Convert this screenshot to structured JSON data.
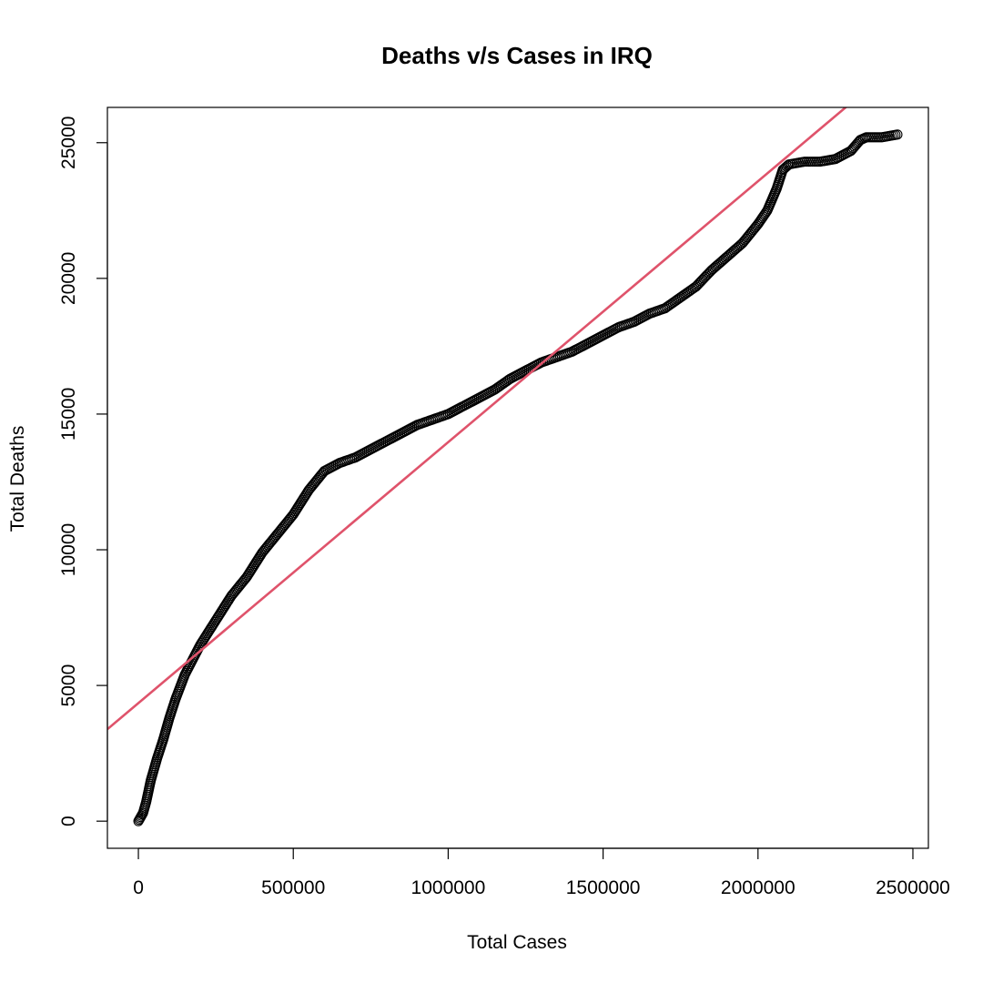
{
  "chart_data": {
    "type": "scatter",
    "title": "Deaths v/s Cases in IRQ",
    "xlabel": "Total Cases",
    "ylabel": "Total Deaths",
    "xlim": [
      -100000,
      2550000
    ],
    "ylim": [
      -1000,
      26300
    ],
    "xticks": [
      0,
      500000,
      1000000,
      1500000,
      2000000,
      2500000
    ],
    "xtick_labels": [
      "0",
      "500000",
      "1000000",
      "1500000",
      "2000000",
      "2500000"
    ],
    "yticks": [
      0,
      5000,
      10000,
      15000,
      20000,
      25000
    ],
    "ytick_labels": [
      "0",
      "5000",
      "10000",
      "15000",
      "20000",
      "25000"
    ],
    "grid": false,
    "marker": "open-circle",
    "point_color": "#000000",
    "trend_color": "#DF536B",
    "series": [
      {
        "points": [
          [
            0,
            0
          ],
          [
            5000,
            100
          ],
          [
            15000,
            300
          ],
          [
            25000,
            700
          ],
          [
            40000,
            1500
          ],
          [
            60000,
            2300
          ],
          [
            80000,
            3000
          ],
          [
            100000,
            3800
          ],
          [
            120000,
            4500
          ],
          [
            150000,
            5400
          ],
          [
            200000,
            6500
          ],
          [
            250000,
            7400
          ],
          [
            300000,
            8300
          ],
          [
            350000,
            9000
          ],
          [
            400000,
            9900
          ],
          [
            450000,
            10600
          ],
          [
            500000,
            11300
          ],
          [
            550000,
            12200
          ],
          [
            600000,
            12900
          ],
          [
            650000,
            13200
          ],
          [
            700000,
            13400
          ],
          [
            750000,
            13700
          ],
          [
            800000,
            14000
          ],
          [
            850000,
            14300
          ],
          [
            900000,
            14600
          ],
          [
            950000,
            14800
          ],
          [
            1000000,
            15000
          ],
          [
            1050000,
            15300
          ],
          [
            1100000,
            15600
          ],
          [
            1150000,
            15900
          ],
          [
            1200000,
            16300
          ],
          [
            1250000,
            16600
          ],
          [
            1300000,
            16900
          ],
          [
            1350000,
            17100
          ],
          [
            1400000,
            17300
          ],
          [
            1450000,
            17600
          ],
          [
            1500000,
            17900
          ],
          [
            1550000,
            18200
          ],
          [
            1600000,
            18400
          ],
          [
            1650000,
            18700
          ],
          [
            1700000,
            18900
          ],
          [
            1750000,
            19300
          ],
          [
            1800000,
            19700
          ],
          [
            1850000,
            20300
          ],
          [
            1900000,
            20800
          ],
          [
            1950000,
            21300
          ],
          [
            2000000,
            22000
          ],
          [
            2030000,
            22500
          ],
          [
            2060000,
            23300
          ],
          [
            2080000,
            24000
          ],
          [
            2100000,
            24200
          ],
          [
            2150000,
            24300
          ],
          [
            2200000,
            24300
          ],
          [
            2250000,
            24400
          ],
          [
            2300000,
            24700
          ],
          [
            2330000,
            25100
          ],
          [
            2350000,
            25200
          ],
          [
            2400000,
            25200
          ],
          [
            2450000,
            25300
          ]
        ]
      }
    ],
    "trend_line": {
      "intercept": 4350,
      "slope": 0.009615
    }
  }
}
